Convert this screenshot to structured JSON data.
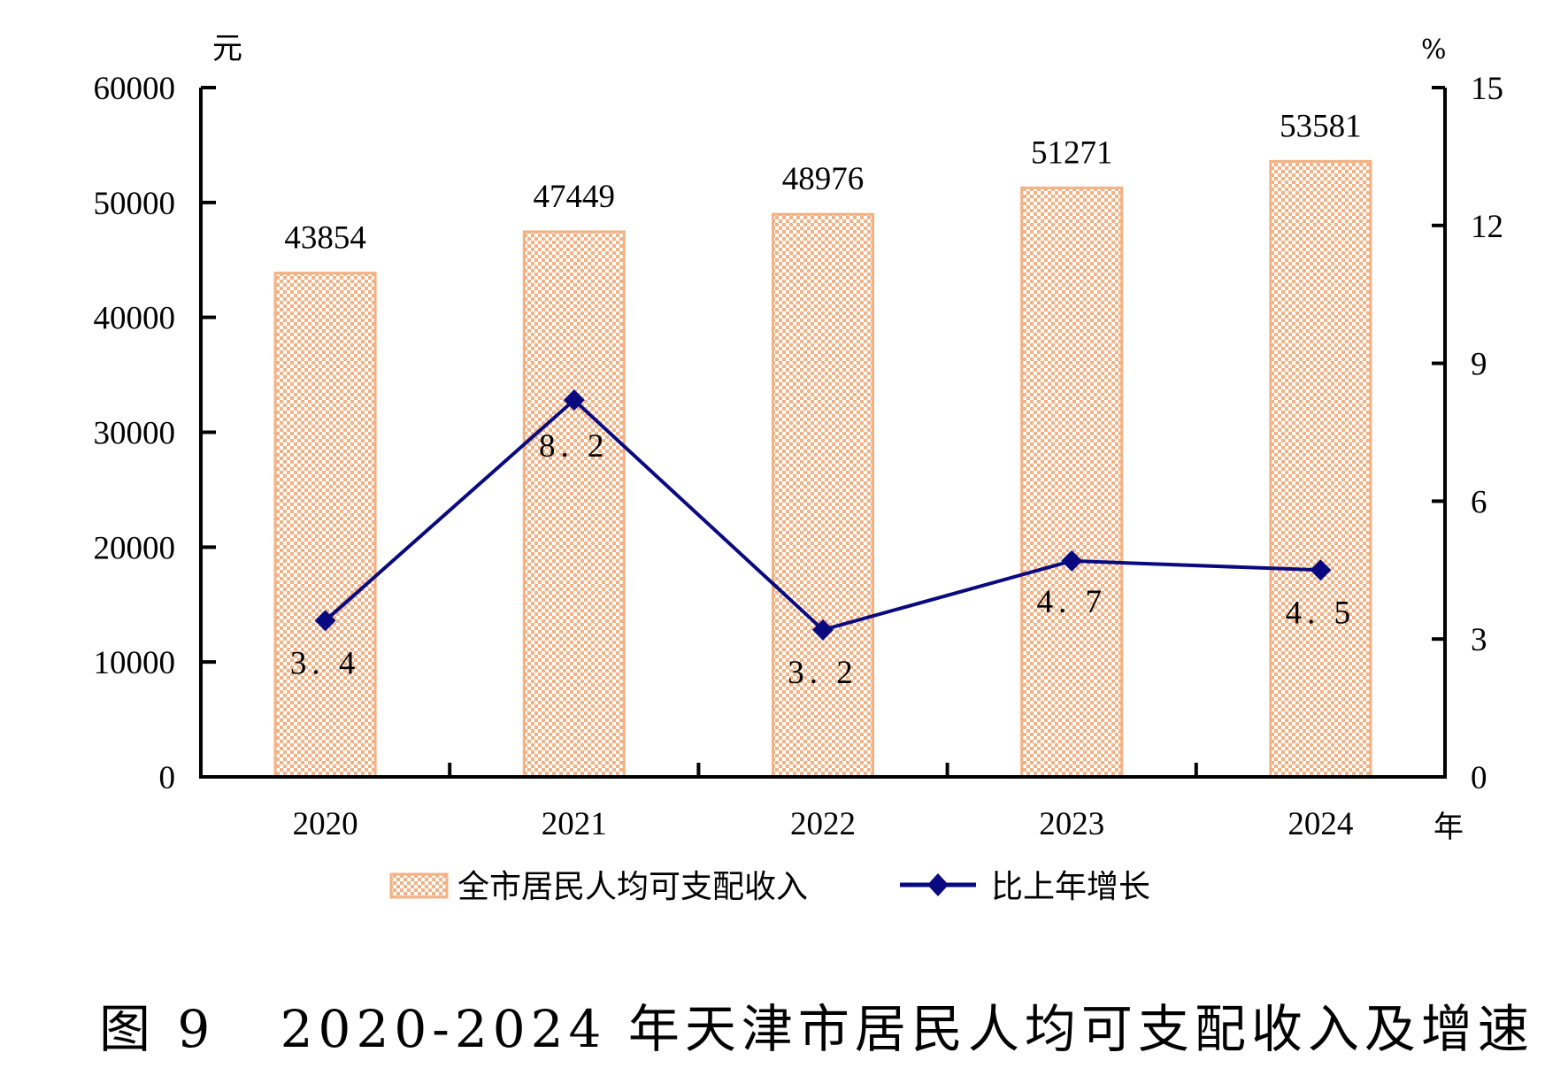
{
  "chart_data": {
    "type": "bar",
    "title": "图 9   2020-2024 年天津市居民人均可支配收入及增速",
    "categories": [
      "2020",
      "2021",
      "2022",
      "2023",
      "2024"
    ],
    "xlabel": "年",
    "ylabel": "元",
    "y2label": "%",
    "ylim": [
      0,
      60000
    ],
    "yticks": [
      0,
      10000,
      20000,
      30000,
      40000,
      50000,
      60000
    ],
    "y2lim": [
      0,
      15
    ],
    "y2ticks": [
      0,
      3,
      6,
      9,
      12,
      15
    ],
    "grid": false,
    "legend_position": "bottom",
    "series": [
      {
        "name": "全市居民人均可支配收入",
        "type": "bar",
        "axis": "left",
        "values": [
          43854,
          47449,
          48976,
          51271,
          53581
        ],
        "labels": [
          "43854",
          "47449",
          "48976",
          "51271",
          "53581"
        ],
        "color": "#F4B183",
        "pattern": "checkerboard"
      },
      {
        "name": "比上年增长",
        "type": "line",
        "axis": "right",
        "marker": "diamond",
        "values": [
          3.4,
          8.2,
          3.2,
          4.7,
          4.5
        ],
        "labels": [
          "3.4",
          "8.2",
          "3.2",
          "4.7",
          "4.5"
        ],
        "color": "#0A0A80"
      }
    ]
  }
}
